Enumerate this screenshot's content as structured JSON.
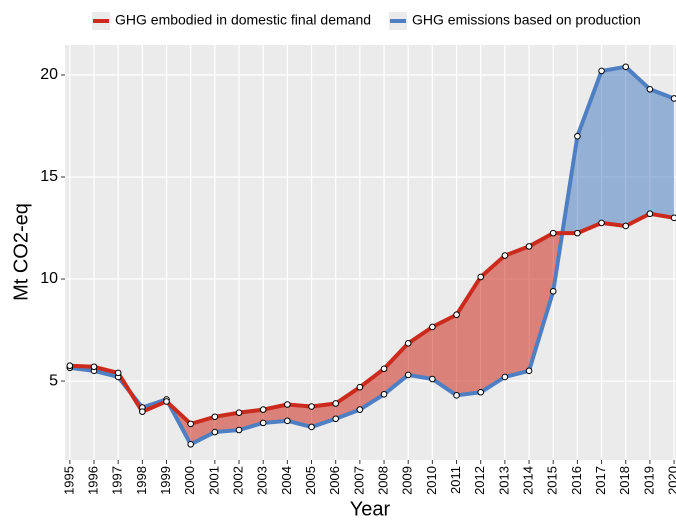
{
  "chart_data": {
    "type": "area-between",
    "y_label": "Mt CO2-eq",
    "x_label": "Year",
    "x": [
      1995,
      1996,
      1997,
      1998,
      1999,
      2000,
      2001,
      2002,
      2003,
      2004,
      2005,
      2006,
      2007,
      2008,
      2009,
      2010,
      2011,
      2012,
      2013,
      2014,
      2015,
      2016,
      2017,
      2018,
      2019,
      2020
    ],
    "series": [
      {
        "name": "GHG embodied in domestic final demand",
        "color": "#cc2a1c",
        "values": [
          5.75,
          5.7,
          5.4,
          3.5,
          4.0,
          2.9,
          3.25,
          3.45,
          3.6,
          3.85,
          3.75,
          3.9,
          4.7,
          5.6,
          6.85,
          7.65,
          8.25,
          10.1,
          11.15,
          11.6,
          12.25,
          12.25,
          12.75,
          12.6,
          13.2,
          13.0
        ]
      },
      {
        "name": "GHG emissions based on production",
        "color": "#4f7fc3",
        "values": [
          5.65,
          5.5,
          5.2,
          3.7,
          4.1,
          1.9,
          2.5,
          2.6,
          2.95,
          3.05,
          2.75,
          3.15,
          3.6,
          4.35,
          5.3,
          5.1,
          4.3,
          4.45,
          5.2,
          5.5,
          9.4,
          17.0,
          20.2,
          20.4,
          19.3,
          18.85
        ]
      }
    ],
    "xlim": [
      1994.8,
      2020.08
    ],
    "ylim": [
      1.13,
      21.47
    ],
    "yticks": [
      5,
      10,
      15,
      20
    ],
    "grid": true,
    "legend": "top"
  }
}
